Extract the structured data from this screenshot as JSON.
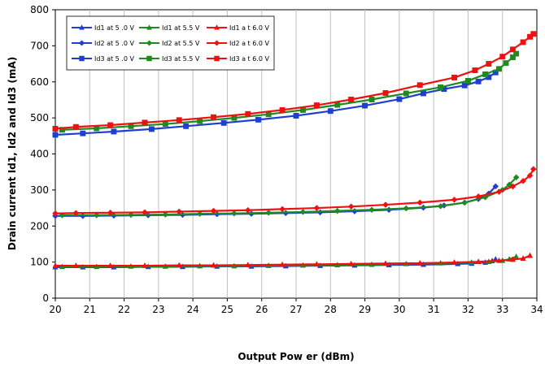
{
  "chart_data": {
    "type": "line",
    "xlabel": "Output Pow er (dBm)",
    "ylabel": "Drain current Id1, Id2 and Id3 (mA)",
    "xlim": [
      20,
      34
    ],
    "ylim": [
      0,
      800
    ],
    "xticks": [
      20,
      21,
      22,
      23,
      24,
      25,
      26,
      27,
      28,
      29,
      30,
      31,
      32,
      33,
      34
    ],
    "yticks": [
      0,
      100,
      200,
      300,
      400,
      500,
      600,
      700,
      800
    ],
    "grid": "vertical",
    "legend_position": "top-left",
    "colors": {
      "blue": "#1f3fd0",
      "green": "#1f8a1f",
      "red": "#ee1111"
    },
    "series": [
      {
        "name": "Id1 at 5 .0 V",
        "color": "blue",
        "marker": "triangle",
        "x": [
          20,
          20.8,
          21.7,
          22.7,
          23.7,
          24.7,
          25.7,
          26.7,
          27.7,
          28.7,
          29.7,
          30.7,
          31.7,
          32.1,
          32.5,
          32.7,
          32.8
        ],
        "y": [
          86,
          86,
          86,
          87,
          87,
          88,
          88,
          89,
          90,
          91,
          92,
          93,
          95,
          96,
          99,
          103,
          108
        ]
      },
      {
        "name": "Id2 at 5 .0 V",
        "color": "blue",
        "marker": "diamond",
        "x": [
          20,
          20.8,
          21.7,
          22.7,
          23.7,
          24.7,
          25.7,
          26.7,
          27.7,
          28.7,
          29.7,
          30.7,
          31.3,
          31.9,
          32.3,
          32.6,
          32.8
        ],
        "y": [
          228,
          228,
          229,
          230,
          231,
          233,
          234,
          236,
          238,
          241,
          245,
          251,
          257,
          265,
          275,
          290,
          310
        ]
      },
      {
        "name": "Id3 at 5 .0 V",
        "color": "blue",
        "marker": "square",
        "x": [
          20,
          20.8,
          21.7,
          22.8,
          23.8,
          24.9,
          25.9,
          27,
          28,
          29,
          30,
          30.7,
          31.3,
          31.9,
          32.3,
          32.6,
          32.8
        ],
        "y": [
          453,
          457,
          462,
          469,
          477,
          486,
          495,
          506,
          519,
          534,
          552,
          568,
          580,
          590,
          601,
          613,
          626
        ]
      },
      {
        "name": "Id1 at 5.5 V",
        "color": "green",
        "marker": "triangle",
        "x": [
          20.2,
          21.2,
          22.2,
          23.2,
          24.2,
          25.2,
          26.2,
          27.2,
          28.2,
          29.2,
          30.2,
          31.2,
          32.1,
          32.6,
          33,
          33.2,
          33.4
        ],
        "y": [
          87,
          87,
          88,
          88,
          89,
          89,
          90,
          91,
          92,
          93,
          95,
          97,
          99,
          101,
          104,
          108,
          115
        ]
      },
      {
        "name": "Id2 at 5.5 V",
        "color": "green",
        "marker": "diamond",
        "x": [
          20.2,
          21.2,
          22.2,
          23.2,
          24.2,
          25.2,
          26.2,
          27.2,
          28.2,
          29.2,
          30.2,
          31.2,
          31.9,
          32.5,
          33,
          33.2,
          33.4
        ],
        "y": [
          230,
          230,
          231,
          232,
          234,
          235,
          237,
          239,
          242,
          245,
          249,
          255,
          265,
          280,
          300,
          315,
          335
        ]
      },
      {
        "name": "Id3 at 5.5 V",
        "color": "green",
        "marker": "square",
        "x": [
          20.2,
          21.2,
          22.2,
          23.2,
          24.2,
          25.2,
          26.2,
          27.2,
          28.2,
          29.2,
          30.2,
          31.2,
          32,
          32.5,
          32.9,
          33.1,
          33.3,
          33.4
        ],
        "y": [
          467,
          471,
          477,
          483,
          491,
          500,
          510,
          522,
          536,
          551,
          568,
          585,
          603,
          621,
          636,
          652,
          668,
          678
        ]
      },
      {
        "name": "Id1 a t 6.0 V",
        "color": "red",
        "marker": "triangle",
        "x": [
          20,
          20.6,
          21.6,
          22.6,
          23.6,
          24.6,
          25.6,
          26.6,
          27.6,
          28.6,
          29.6,
          30.6,
          31.6,
          32.3,
          32.9,
          33.3,
          33.6,
          33.8
        ],
        "y": [
          90,
          90,
          90,
          90,
          91,
          91,
          92,
          93,
          94,
          95,
          96,
          97,
          99,
          101,
          104,
          107,
          110,
          118
        ]
      },
      {
        "name": "Id2 a t 6.0 V",
        "color": "red",
        "marker": "diamond",
        "x": [
          20,
          20.6,
          21.6,
          22.6,
          23.6,
          24.6,
          25.6,
          26.6,
          27.6,
          28.6,
          29.6,
          30.6,
          31.6,
          32.3,
          32.9,
          33.3,
          33.6,
          33.8,
          33.9
        ],
        "y": [
          235,
          236,
          237,
          238,
          240,
          242,
          244,
          247,
          250,
          254,
          259,
          265,
          273,
          282,
          295,
          310,
          325,
          340,
          358
        ]
      },
      {
        "name": "Id3 a t 6.0 V",
        "color": "red",
        "marker": "square",
        "x": [
          20,
          20.6,
          21.6,
          22.6,
          23.6,
          24.6,
          25.6,
          26.6,
          27.6,
          28.6,
          29.6,
          30.6,
          31.6,
          32.2,
          32.6,
          33,
          33.3,
          33.6,
          33.8,
          33.9
        ],
        "y": [
          470,
          475,
          480,
          487,
          494,
          502,
          511,
          522,
          535,
          551,
          569,
          591,
          612,
          632,
          650,
          670,
          690,
          710,
          725,
          733
        ]
      }
    ]
  }
}
